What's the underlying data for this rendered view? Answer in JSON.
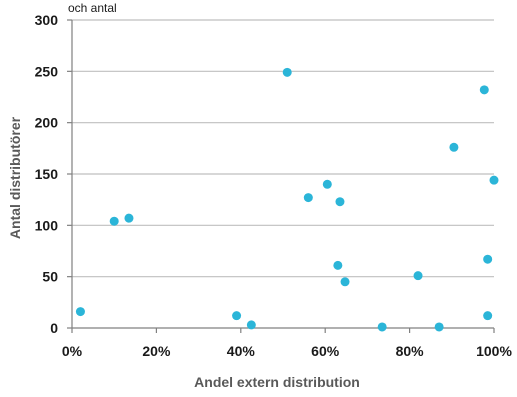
{
  "chart_data": {
    "type": "scatter",
    "title_fragment": "och antal",
    "xlabel": "Andel extern distribution",
    "ylabel": "Antal distributörer",
    "xlim": [
      0,
      1
    ],
    "ylim": [
      0,
      300
    ],
    "x_ticks": [
      {
        "value": 0,
        "label": "0%"
      },
      {
        "value": 0.2,
        "label": "20%"
      },
      {
        "value": 0.4,
        "label": "40%"
      },
      {
        "value": 0.6,
        "label": "60%"
      },
      {
        "value": 0.8,
        "label": "80%"
      },
      {
        "value": 1.0,
        "label": "100%"
      }
    ],
    "y_ticks": [
      {
        "value": 0,
        "label": "0"
      },
      {
        "value": 50,
        "label": "50"
      },
      {
        "value": 100,
        "label": "100"
      },
      {
        "value": 150,
        "label": "150"
      },
      {
        "value": 200,
        "label": "200"
      },
      {
        "value": 250,
        "label": "250"
      },
      {
        "value": 300,
        "label": "300"
      }
    ],
    "grid": "horizontal",
    "marker_color": "#2bb5d8",
    "gridline_color": "#bfbfbf",
    "axis_color": "#808080",
    "points": [
      {
        "x": 0.02,
        "y": 16
      },
      {
        "x": 0.1,
        "y": 104
      },
      {
        "x": 0.135,
        "y": 107
      },
      {
        "x": 0.39,
        "y": 12
      },
      {
        "x": 0.425,
        "y": 3
      },
      {
        "x": 0.51,
        "y": 249
      },
      {
        "x": 0.56,
        "y": 127
      },
      {
        "x": 0.605,
        "y": 140
      },
      {
        "x": 0.63,
        "y": 61
      },
      {
        "x": 0.635,
        "y": 123
      },
      {
        "x": 0.647,
        "y": 45
      },
      {
        "x": 0.735,
        "y": 1
      },
      {
        "x": 0.82,
        "y": 51
      },
      {
        "x": 0.87,
        "y": 1
      },
      {
        "x": 0.905,
        "y": 176
      },
      {
        "x": 0.977,
        "y": 232
      },
      {
        "x": 0.985,
        "y": 67
      },
      {
        "x": 0.985,
        "y": 12
      },
      {
        "x": 1.0,
        "y": 144
      }
    ]
  }
}
